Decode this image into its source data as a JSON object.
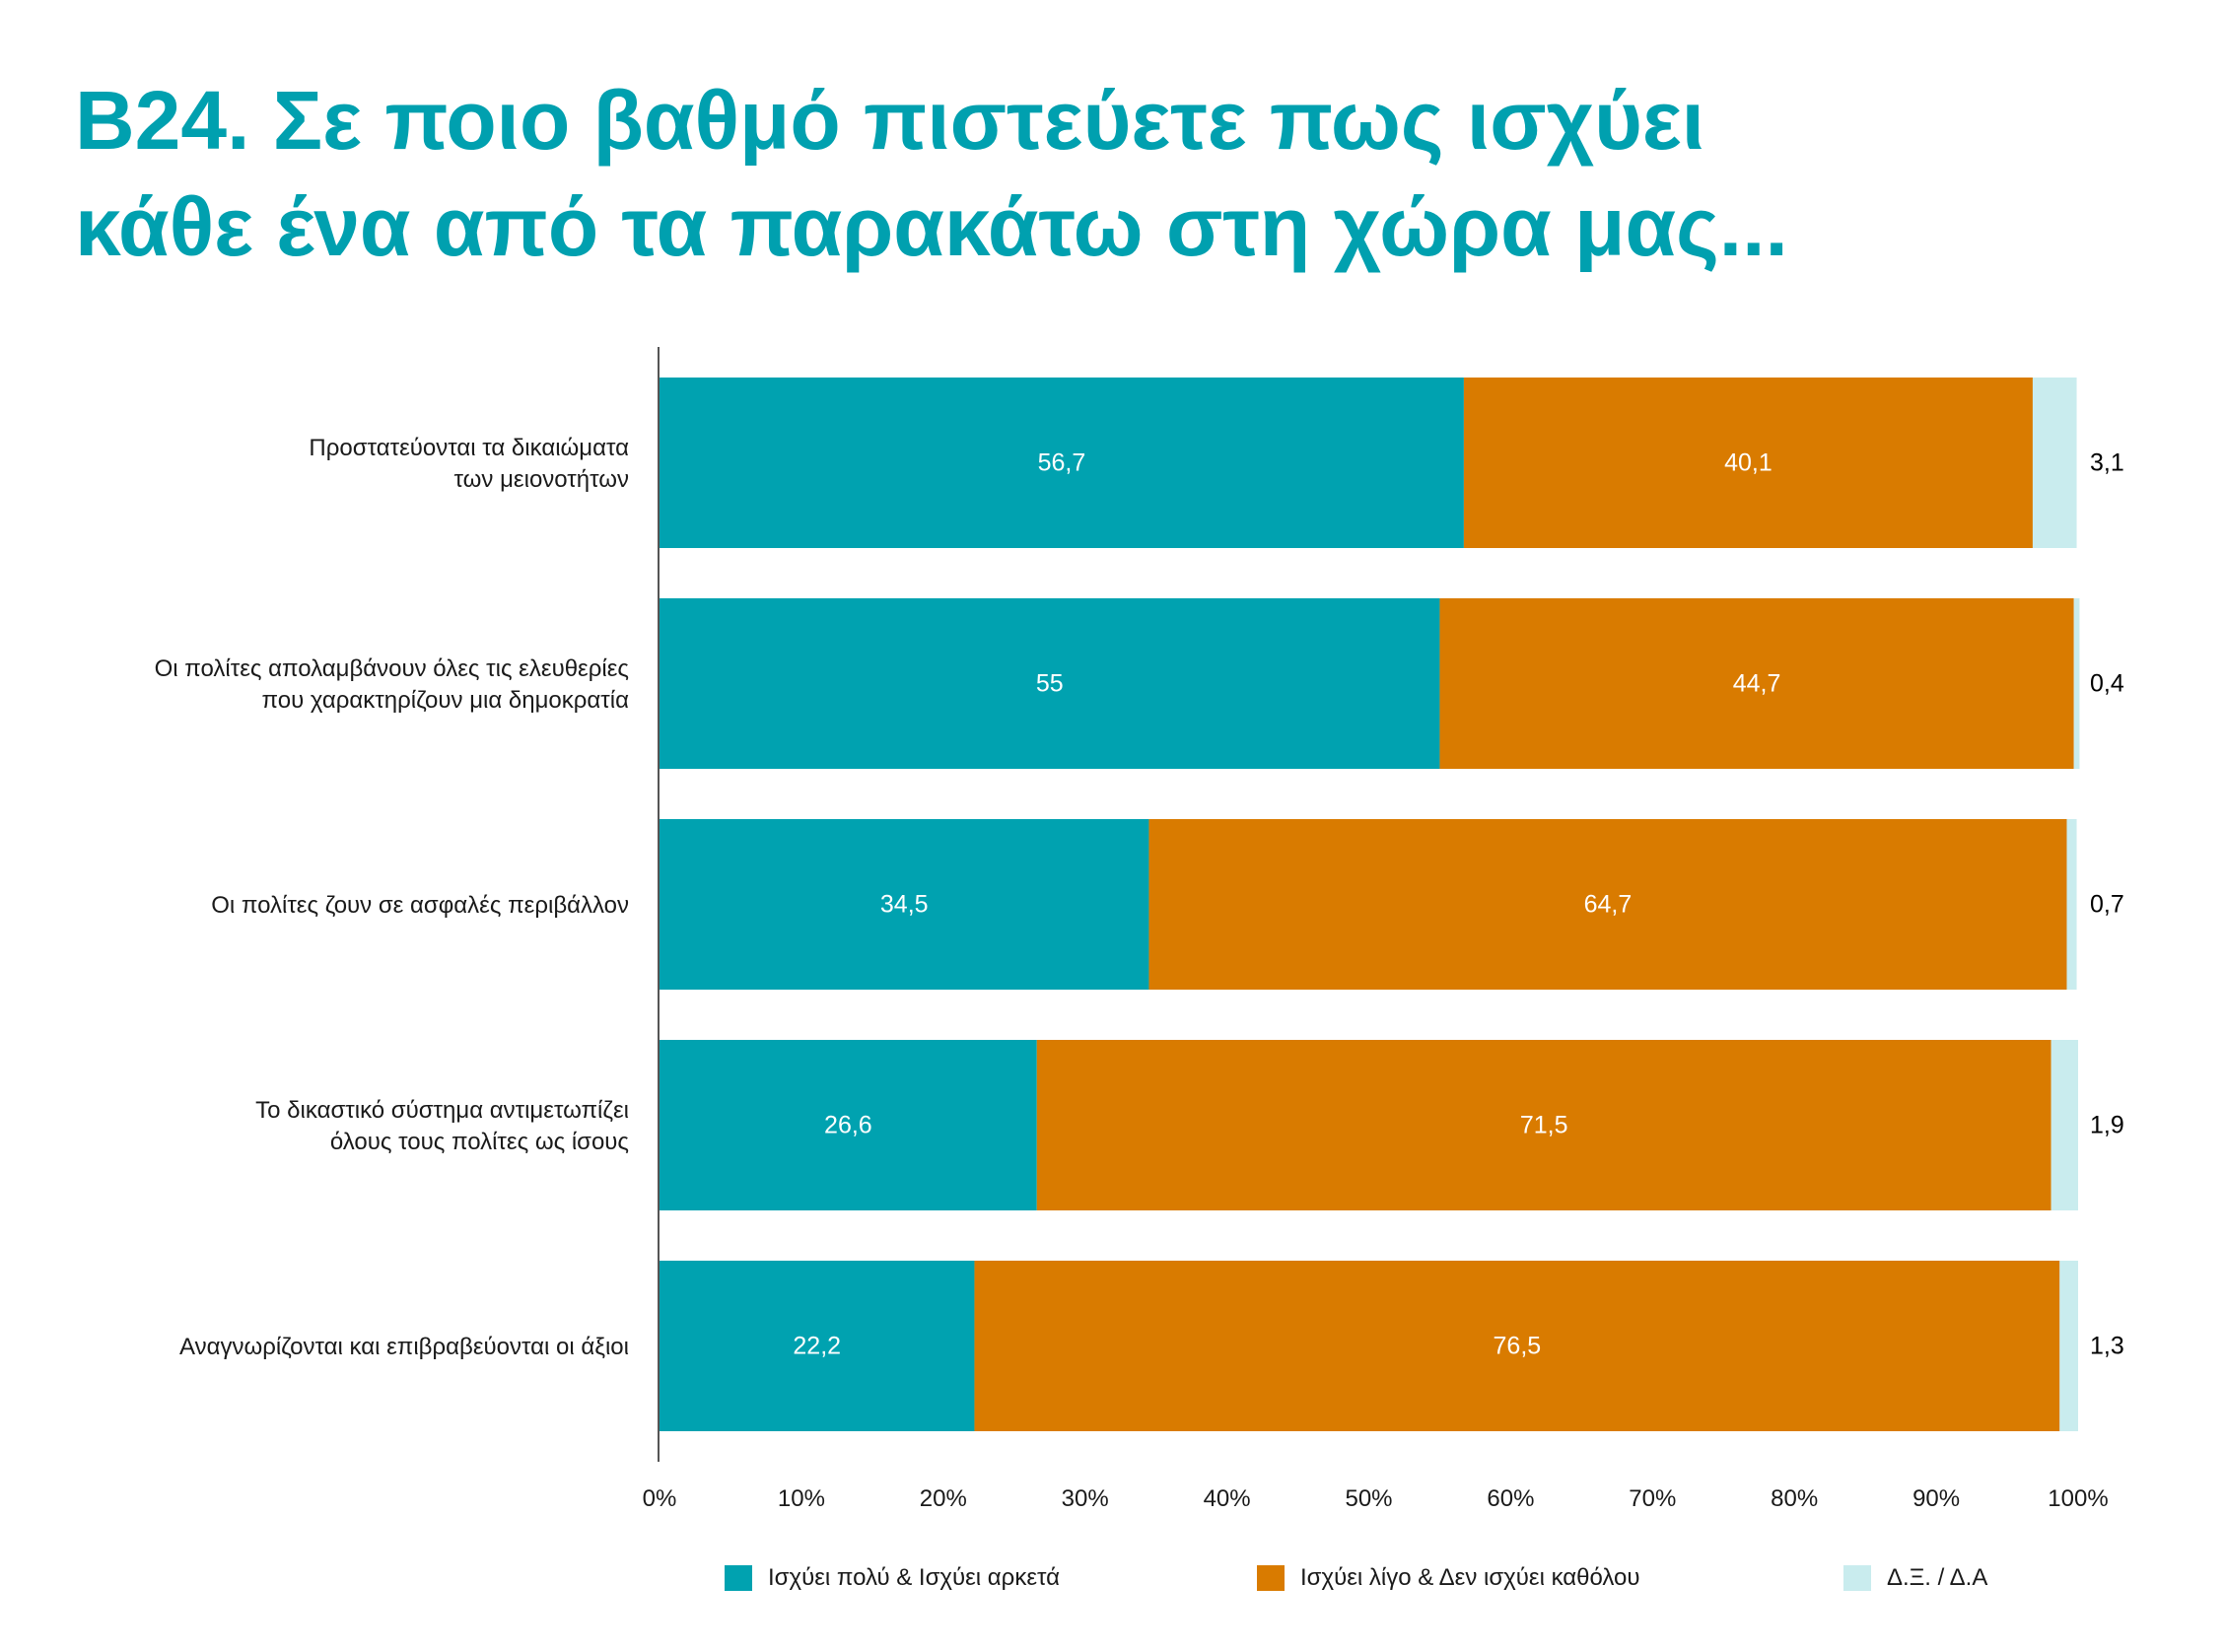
{
  "title": {
    "line1": "B24. Σε ποιο βαθμό πιστεύετε πως ισχύει",
    "line2": "κάθε ένα από τα παρακάτω στη χώρα μας..."
  },
  "colors": {
    "title": "#00a0af",
    "series1": "#00a2b0",
    "series2": "#d97b00",
    "series3": "#c9ecee"
  },
  "chart_data": {
    "type": "bar",
    "orientation": "horizontal",
    "stacked": true,
    "categories": [
      [
        "Προστατεύονται τα δικαιώματα",
        "των μειονοτήτων"
      ],
      [
        "Οι πολίτες απολαμβάνουν όλες τις ελευθερίες",
        "που χαρακτηρίζουν μια δημοκρατία"
      ],
      [
        "Οι πολίτες ζουν σε ασφαλές περιβάλλον"
      ],
      [
        "Το δικαστικό σύστημα αντιμετωπίζει",
        "όλους τους πολίτες ως ίσους"
      ],
      [
        "Αναγνωρίζονται και επιβραβεύονται οι άξιοι"
      ]
    ],
    "series": [
      {
        "name": "Ισχύει πολύ & Ισχύει αρκετά",
        "values": [
          56.7,
          55,
          34.5,
          26.6,
          22.2
        ],
        "labels": [
          "56,7",
          "55",
          "34,5",
          "26,6",
          "22,2"
        ]
      },
      {
        "name": "Ισχύει λίγο & Δεν ισχύει καθόλου",
        "values": [
          40.1,
          44.7,
          64.7,
          71.5,
          76.5
        ],
        "labels": [
          "40,1",
          "44,7",
          "64,7",
          "71,5",
          "76,5"
        ]
      },
      {
        "name": "Δ.Ξ. / Δ.Α",
        "values": [
          3.1,
          0.4,
          0.7,
          1.9,
          1.3
        ],
        "labels": [
          "3,1",
          "0,4",
          "0,7",
          "1,9",
          "1,3"
        ]
      }
    ],
    "xlim": [
      0,
      100
    ],
    "xticks": [
      "0%",
      "10%",
      "20%",
      "30%",
      "40%",
      "50%",
      "60%",
      "70%",
      "80%",
      "90%",
      "100%"
    ],
    "grid": false,
    "legend_position": "bottom"
  }
}
